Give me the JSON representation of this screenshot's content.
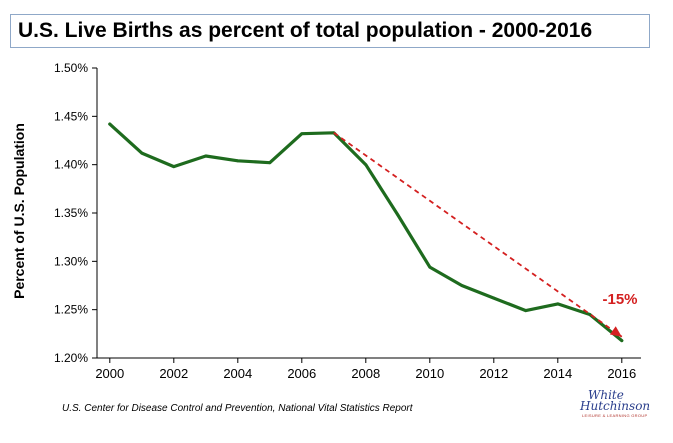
{
  "chart_data": {
    "type": "line",
    "title": "U.S. Live Births as percent of total population - 2000-2016",
    "ylabel": "Percent of U.S. Population",
    "xlabel": "",
    "x": [
      2000,
      2001,
      2002,
      2003,
      2004,
      2005,
      2006,
      2007,
      2008,
      2009,
      2010,
      2011,
      2012,
      2013,
      2014,
      2015,
      2016
    ],
    "series": [
      {
        "values": [
          1.442,
          1.412,
          1.398,
          1.409,
          1.404,
          1.402,
          1.432,
          1.433,
          1.4,
          1.348,
          1.294,
          1.275,
          1.262,
          1.249,
          1.256,
          1.245,
          1.218
        ],
        "color": "#1e6b1e"
      }
    ],
    "trend": {
      "x_start": 2007,
      "y_start": 1.433,
      "x_end": 2016,
      "y_end": 1.222,
      "color": "#d42020",
      "style": "dashed",
      "label": "-15%"
    },
    "xlim": [
      1999.6,
      2016.6
    ],
    "ylim": [
      1.2,
      1.5
    ],
    "xticks": [
      2000,
      2002,
      2004,
      2006,
      2008,
      2010,
      2012,
      2014,
      2016
    ],
    "xtick_labels": [
      "2000",
      "2002",
      "2004",
      "2006",
      "2008",
      "2010",
      "2012",
      "2014",
      "2016"
    ],
    "yticks": [
      1.2,
      1.25,
      1.3,
      1.35,
      1.4,
      1.45,
      1.5
    ],
    "ytick_labels": [
      "1.20%",
      "1.25%",
      "1.30%",
      "1.35%",
      "1.40%",
      "1.45%",
      "1.50%"
    ],
    "grid": false,
    "legend": "none"
  },
  "source": "U.S.  Center for Disease Control and Prevention, National Vital Statistics Report",
  "logo": {
    "line1": "White",
    "line2": "Hutchinson",
    "line3": "LEISURE & LEARNING GROUP"
  }
}
